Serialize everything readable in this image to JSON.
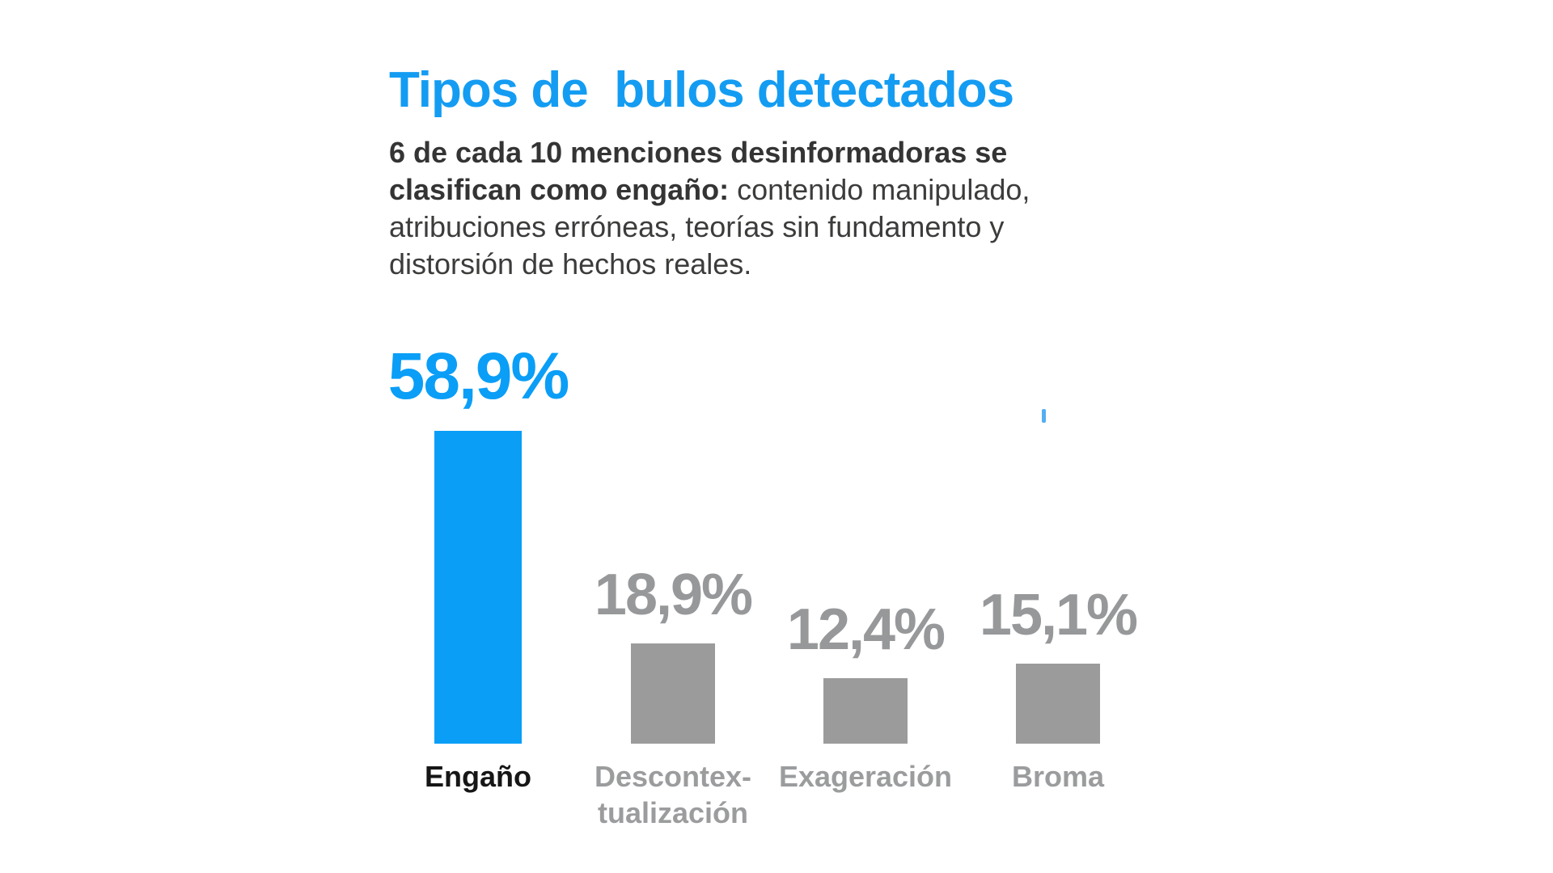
{
  "title": "Tipos de  bulos detectados",
  "subtitle": {
    "bold": "6 de cada 10 menciones desinformadoras se clasifican como engaño:",
    "regular": " contenido manipulado, atribuciones erróneas, teorías sin fundamento y distorsión de hechos reales."
  },
  "colors": {
    "background": "#ffffff",
    "title_blue": "#149cf2",
    "accent_blue": "#0a9ef7",
    "bar_gray": "#9b9b9b",
    "value_gray": "#97989a",
    "body_text_dark": "#3c3c3b",
    "category_dark": "#161616",
    "category_gray": "#9b9c9e",
    "stray_tick_blue": "#56aef1"
  },
  "chart_data": {
    "type": "bar",
    "title": "Tipos de bulos detectados",
    "categories": [
      "Engaño",
      "Descontextualización",
      "Exageración",
      "Broma"
    ],
    "values": [
      58.9,
      18.9,
      12.4,
      15.1
    ],
    "unit": "%",
    "value_labels": [
      "58,9%",
      "18,9%",
      "12,4%",
      "15,1%"
    ],
    "category_labels_display": [
      "Engaño",
      "Descontex-\ntualización",
      "Exageración",
      "Broma"
    ],
    "bar_colors": [
      "#0a9ef7",
      "#9b9b9b",
      "#9b9b9b",
      "#9b9b9b"
    ],
    "value_label_colors": [
      "#0a9ef7",
      "#97989a",
      "#97989a",
      "#97989a"
    ],
    "category_label_colors": [
      "#161616",
      "#9b9c9e",
      "#9b9c9e",
      "#9b9c9e"
    ],
    "ylim": [
      0,
      60
    ],
    "grid": false,
    "legend": false,
    "xlabel": "",
    "ylabel": ""
  }
}
